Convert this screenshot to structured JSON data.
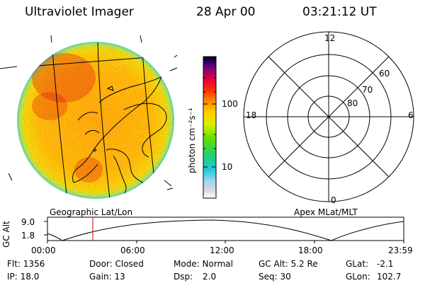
{
  "header": {
    "instrument": "Ultraviolet Imager",
    "date": "28 Apr 00",
    "time": "03:21:12 UT"
  },
  "colorbar": {
    "unit_label": "photon cm⁻²s⁻¹",
    "ticks": [
      "100",
      "10"
    ]
  },
  "panels": {
    "left_caption": "Geographic Lat/Lon",
    "right_caption": "Apex MLat/MLT"
  },
  "polar": {
    "mlt_labels": {
      "top": "12",
      "left": "18",
      "right": "6",
      "bottom": "0"
    },
    "lat_labels": [
      "60",
      "70",
      "80"
    ]
  },
  "altitude_plot": {
    "ylabel": "GC Alt",
    "yticks": [
      "9.0",
      "1.8"
    ],
    "xticks": [
      "00:00",
      "06:00",
      "12:00",
      "18:00",
      "23:59"
    ],
    "marker_color": "#c00000"
  },
  "info": {
    "row1": {
      "flt": "Flt: 1356",
      "door": "Door: Closed",
      "mode": "Mode: Normal",
      "gcalt": "GC Alt: 5.2 Re",
      "glat_label": "GLat:",
      "glat_value": "-2.1"
    },
    "row2": {
      "ip": "IP: 18.0",
      "gain": "Gain: 13",
      "dsp_label": "Dsp:",
      "dsp_value": "2.0",
      "seq": "Seq: 30",
      "glon_label": "GLon:",
      "glon_value": "102.7"
    }
  }
}
